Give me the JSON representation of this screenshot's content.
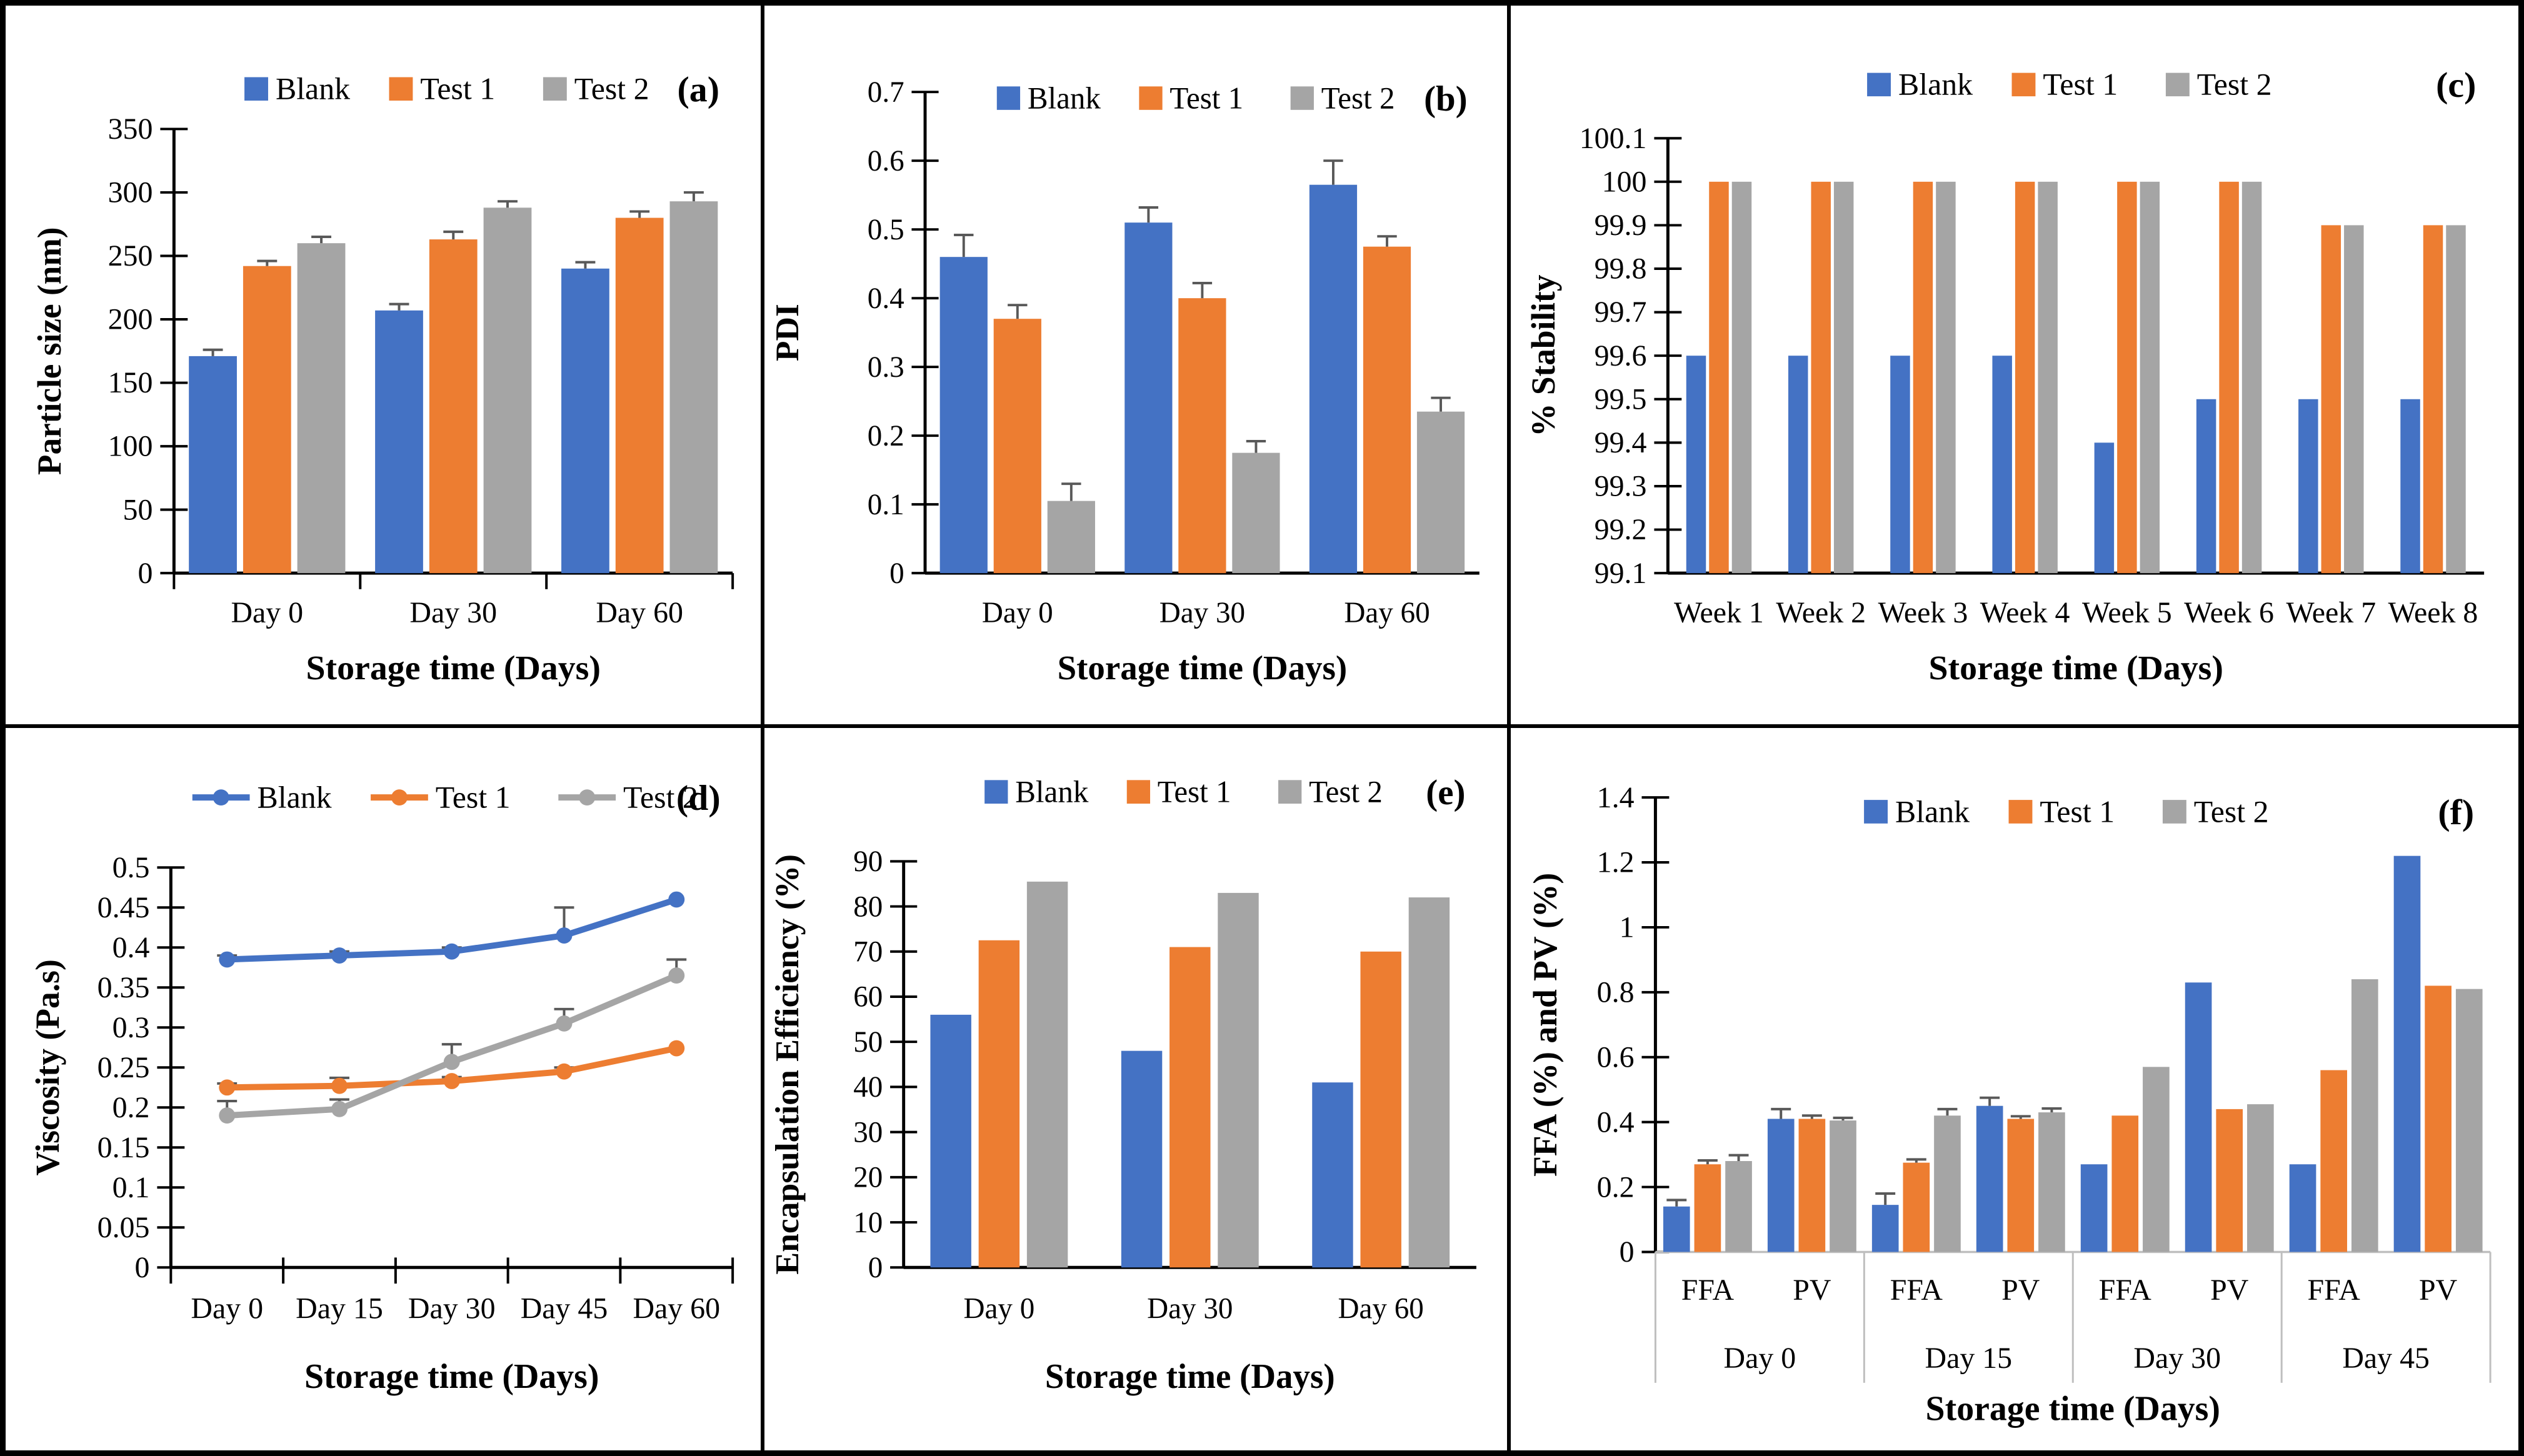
{
  "figure": {
    "series_names": [
      "Blank",
      "Test 1",
      "Test 2"
    ],
    "series_colors": [
      "#4472C4",
      "#ED7D31",
      "#A5A5A5"
    ],
    "error_bar_color": "#595959",
    "axis_color": "#000000",
    "multilevel_axis_color": "#BFBFBF",
    "text_color": "#000000",
    "background_color": "#FFFFFF"
  },
  "chart_data": [
    {
      "id": "a",
      "panel_label": "(a)",
      "type": "bar",
      "xlabel": "Storage time (Days)",
      "ylabel": "Particle size (nm)",
      "categories": [
        "Day 0",
        "Day 30",
        "Day 60"
      ],
      "ymin": 0,
      "ymax": 350,
      "ytick_labels": [
        "0",
        "50",
        "100",
        "150",
        "200",
        "250",
        "300",
        "350"
      ],
      "legend_position": "top-center",
      "legend": [
        "Blank",
        "Test 1",
        "Test 2"
      ],
      "series": [
        {
          "name": "Blank",
          "values": [
            171,
            207,
            240
          ],
          "errors": [
            5,
            5,
            5
          ]
        },
        {
          "name": "Test 1",
          "values": [
            242,
            263,
            280
          ],
          "errors": [
            4,
            6,
            5
          ]
        },
        {
          "name": "Test 2",
          "values": [
            260,
            288,
            293
          ],
          "errors": [
            5,
            5,
            7
          ]
        }
      ]
    },
    {
      "id": "b",
      "panel_label": "(b)",
      "type": "bar",
      "xlabel": "Storage time (Days)",
      "ylabel": "PDI",
      "categories": [
        "Day 0",
        "Day 30",
        "Day 60"
      ],
      "ymin": 0,
      "ymax": 0.7,
      "ytick_labels": [
        "0",
        "0.1",
        "0.2",
        "0.3",
        "0.4",
        "0.5",
        "0.6",
        "0.7"
      ],
      "legend_position": "top-center",
      "legend": [
        "Blank",
        "Test 1",
        "Test 2"
      ],
      "series": [
        {
          "name": "Blank",
          "values": [
            0.46,
            0.51,
            0.565
          ],
          "errors": [
            0.032,
            0.022,
            0.035
          ]
        },
        {
          "name": "Test 1",
          "values": [
            0.37,
            0.4,
            0.475
          ],
          "errors": [
            0.02,
            0.022,
            0.015
          ]
        },
        {
          "name": "Test 2",
          "values": [
            0.105,
            0.175,
            0.235
          ],
          "errors": [
            0.025,
            0.017,
            0.02
          ]
        }
      ]
    },
    {
      "id": "c",
      "panel_label": "(c)",
      "type": "bar",
      "xlabel": "Storage time (Days)",
      "ylabel": "% Stability",
      "categories": [
        "Week 1",
        "Week 2",
        "Week 3",
        "Week 4",
        "Week 5",
        "Week 6",
        "Week 7",
        "Week 8"
      ],
      "ymin": 99.1,
      "ymax": 100.1,
      "ytick_labels": [
        "99.1",
        "99.2",
        "99.3",
        "99.4",
        "99.5",
        "99.6",
        "99.7",
        "99.8",
        "99.9",
        "100",
        "100.1"
      ],
      "legend_position": "top-center",
      "legend": [
        "Blank",
        "Test 1",
        "Test 2"
      ],
      "series": [
        {
          "name": "Blank",
          "values": [
            99.6,
            99.6,
            99.6,
            99.6,
            99.4,
            99.5,
            99.5,
            99.5
          ],
          "errors": [
            0,
            0,
            0,
            0,
            0,
            0,
            0,
            0
          ]
        },
        {
          "name": "Test 1",
          "values": [
            100,
            100,
            100,
            100,
            100,
            100,
            99.9,
            99.9
          ],
          "errors": [
            0,
            0,
            0,
            0,
            0,
            0,
            0,
            0
          ]
        },
        {
          "name": "Test 2",
          "values": [
            100,
            100,
            100,
            100,
            100,
            100,
            99.9,
            99.9
          ],
          "errors": [
            0,
            0,
            0,
            0,
            0,
            0,
            0,
            0
          ]
        }
      ]
    },
    {
      "id": "d",
      "panel_label": "(d)",
      "type": "line",
      "xlabel": "Storage time (Days)",
      "ylabel": "Viscosity (Pa.s)",
      "categories": [
        "Day 0",
        "Day 15",
        "Day 30",
        "Day 45",
        "Day 60"
      ],
      "ymin": 0,
      "ymax": 0.5,
      "ytick_labels": [
        "0",
        "0.05",
        "0.1",
        "0.15",
        "0.2",
        "0.25",
        "0.3",
        "0.35",
        "0.4",
        "0.45",
        "0.5"
      ],
      "legend_position": "top-center",
      "legend": [
        "Blank",
        "Test 1",
        "Test 2"
      ],
      "series": [
        {
          "name": "Blank",
          "values": [
            0.385,
            0.39,
            0.395,
            0.415,
            0.46
          ],
          "errors": [
            0.005,
            0.005,
            0.005,
            0.035,
            0
          ]
        },
        {
          "name": "Test 1",
          "values": [
            0.225,
            0.227,
            0.233,
            0.245,
            0.274
          ],
          "errors": [
            0.005,
            0.01,
            0.005,
            0.005,
            0
          ]
        },
        {
          "name": "Test 2",
          "values": [
            0.19,
            0.198,
            0.257,
            0.305,
            0.365
          ],
          "errors": [
            0.018,
            0.012,
            0.022,
            0.018,
            0.02
          ]
        }
      ]
    },
    {
      "id": "e",
      "panel_label": "(e)",
      "type": "bar",
      "xlabel": "Storage time (Days)",
      "ylabel": "Encapsulation Efficiency (%)",
      "categories": [
        "Day 0",
        "Day 30",
        "Day 60"
      ],
      "ymin": 0,
      "ymax": 90,
      "ytick_labels": [
        "0",
        "10",
        "20",
        "30",
        "40",
        "50",
        "60",
        "70",
        "80",
        "90"
      ],
      "legend_position": "top-center",
      "legend": [
        "Blank",
        "Test 1",
        "Test 2"
      ],
      "series": [
        {
          "name": "Blank",
          "values": [
            56,
            48,
            41
          ],
          "errors": [
            0,
            0,
            0
          ]
        },
        {
          "name": "Test 1",
          "values": [
            72.5,
            71,
            70
          ],
          "errors": [
            0,
            0,
            0
          ]
        },
        {
          "name": "Test 2",
          "values": [
            85.5,
            83,
            82
          ],
          "errors": [
            0,
            0,
            0
          ]
        }
      ]
    },
    {
      "id": "f",
      "panel_label": "(f)",
      "type": "bar",
      "xlabel": "Storage time (Days)",
      "ylabel": "FFA (%) and PV (%)",
      "categories": [
        "FFA",
        "PV",
        "FFA",
        "PV",
        "FFA",
        "PV",
        "FFA",
        "PV"
      ],
      "group_labels": [
        {
          "label": "Day 0",
          "span": 2
        },
        {
          "label": "Day 15",
          "span": 2
        },
        {
          "label": "Day 30",
          "span": 2
        },
        {
          "label": "Day 45",
          "span": 2
        }
      ],
      "ymin": 0,
      "ymax": 1.4,
      "ytick_labels": [
        "0",
        "0.2",
        "0.4",
        "0.6",
        "0.8",
        "1",
        "1.2",
        "1.4"
      ],
      "legend_position": "top-center",
      "legend": [
        "Blank",
        "Test 1",
        "Test 2"
      ],
      "series": [
        {
          "name": "Blank",
          "values": [
            0.14,
            0.41,
            0.145,
            0.45,
            0.27,
            0.83,
            0.27,
            1.22
          ],
          "errors": [
            0.02,
            0.03,
            0.035,
            0.025,
            0,
            0,
            0,
            0
          ]
        },
        {
          "name": "Test 1",
          "values": [
            0.27,
            0.41,
            0.275,
            0.41,
            0.42,
            0.44,
            0.56,
            0.82
          ],
          "errors": [
            0.012,
            0.01,
            0.01,
            0.008,
            0,
            0,
            0,
            0
          ]
        },
        {
          "name": "Test 2",
          "values": [
            0.28,
            0.405,
            0.42,
            0.43,
            0.57,
            0.455,
            0.84,
            0.81
          ],
          "errors": [
            0.018,
            0.008,
            0.02,
            0.012,
            0,
            0,
            0,
            0
          ]
        }
      ]
    }
  ]
}
